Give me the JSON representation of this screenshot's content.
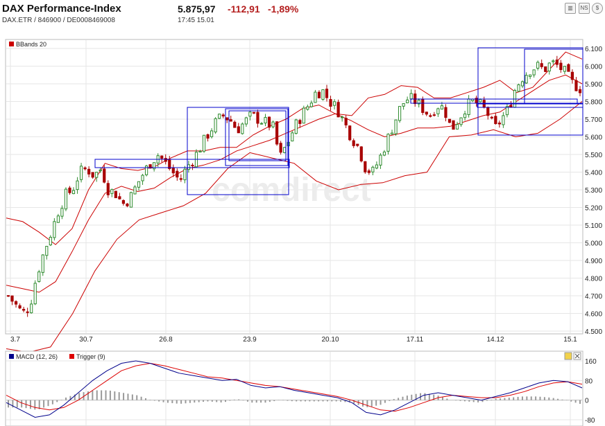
{
  "header": {
    "title": "DAX Performance-Index",
    "subtitle": "DAX.ETR  /  846900  /  DE0008469008",
    "price": "5.875,97",
    "change": "-112,91",
    "change_pct": "-1,89%",
    "time": "17:45   15.01",
    "toolbar": [
      {
        "name": "bar-chart-icon",
        "glyph": "▥"
      },
      {
        "name": "news-icon",
        "glyph": "NS"
      },
      {
        "name": "currency-icon",
        "glyph": "$"
      }
    ]
  },
  "watermark": "comdirect",
  "colors": {
    "up": "#2e8b2e",
    "down": "#a80000",
    "bands": "#cc0000",
    "macd": "#00008b",
    "trigger": "#dd0000",
    "histogram": "#999999",
    "boxes": "#0000cc"
  },
  "chart_data": [
    {
      "type": "candlestick",
      "legend": [
        {
          "name": "BBands 20",
          "color": "#cc0000"
        }
      ],
      "x_ticks": [
        "3.7",
        "30.7",
        "26.8",
        "23.9",
        "20.10",
        "17.11",
        "14.12",
        "15.1"
      ],
      "y_ticks": [
        "6.100",
        "6.000",
        "5.900",
        "5.800",
        "5.700",
        "5.600",
        "5.500",
        "5.400",
        "5.300",
        "5.200",
        "5.100",
        "5.000",
        "4.900",
        "4.800",
        "4.700",
        "4.600",
        "4.500"
      ],
      "ylim": [
        4500,
        6100
      ],
      "close_path": [
        4700,
        4650,
        4600,
        4640,
        4820,
        4950,
        5060,
        5180,
        5270,
        5300,
        5400,
        5420,
        5380,
        5420,
        5300,
        5280,
        5220,
        5250,
        5330,
        5400,
        5460,
        5500,
        5450,
        5400,
        5350,
        5430,
        5480,
        5550,
        5620,
        5680,
        5720,
        5700,
        5640,
        5680,
        5720,
        5700,
        5680,
        5660,
        5480,
        5560,
        5650,
        5720,
        5780,
        5850,
        5860,
        5800,
        5760,
        5680,
        5600,
        5540,
        5420,
        5400,
        5480,
        5580,
        5680,
        5780,
        5820,
        5800,
        5760,
        5720,
        5780,
        5760,
        5640,
        5700,
        5770,
        5800,
        5780,
        5740,
        5640,
        5700,
        5760,
        5880,
        5940,
        5980,
        6000,
        5980,
        6020,
        6000,
        5960,
        5900,
        5876
      ],
      "upper_band": [
        5140,
        5120,
        5060,
        4990,
        5080,
        5300,
        5450,
        5420,
        5410,
        5430,
        5480,
        5520,
        5520,
        5540,
        5540,
        5610,
        5660,
        5700,
        5760,
        5780,
        5730,
        5720,
        5820,
        5840,
        5890,
        5880,
        5820,
        5820,
        5850,
        5880,
        5920,
        5850,
        5880,
        5980,
        6080,
        6040
      ],
      "middle_band": [
        4760,
        4740,
        4720,
        4780,
        4950,
        5130,
        5280,
        5320,
        5290,
        5310,
        5370,
        5420,
        5440,
        5470,
        5520,
        5550,
        5580,
        5620,
        5660,
        5700,
        5730,
        5690,
        5640,
        5600,
        5620,
        5650,
        5650,
        5660,
        5690,
        5720,
        5740,
        5800,
        5860,
        5920,
        5950,
        5900
      ],
      "lower_band": [
        4400,
        4380,
        4410,
        4600,
        4840,
        5020,
        5130,
        5170,
        5210,
        5280,
        5420,
        5510,
        5480,
        5450,
        5350,
        5300,
        5330,
        5340,
        5380,
        5400,
        5600,
        5610,
        5640,
        5600,
        5620,
        5700,
        5800
      ]
    },
    {
      "type": "macd",
      "legend": [
        {
          "name": "MACD (12, 26)",
          "color": "#00008b"
        },
        {
          "name": "Trigger (9)",
          "color": "#dd0000"
        }
      ],
      "y_ticks": [
        "160",
        "80",
        "0",
        "-80"
      ],
      "ylim": [
        -80,
        160
      ],
      "macd": [
        -10,
        -40,
        -70,
        -60,
        -20,
        30,
        80,
        120,
        150,
        160,
        150,
        130,
        110,
        100,
        90,
        80,
        85,
        60,
        50,
        55,
        40,
        30,
        20,
        10,
        -10,
        -50,
        -60,
        -40,
        -10,
        20,
        30,
        20,
        10,
        0,
        15,
        30,
        50,
        70,
        80,
        75,
        50
      ],
      "trigger": [
        20,
        -10,
        -30,
        -40,
        -30,
        0,
        40,
        80,
        120,
        140,
        150,
        140,
        125,
        110,
        95,
        90,
        80,
        70,
        60,
        55,
        45,
        35,
        25,
        15,
        0,
        -20,
        -40,
        -45,
        -30,
        -10,
        10,
        20,
        15,
        10,
        10,
        20,
        35,
        55,
        70,
        75,
        65
      ],
      "histogram": [
        -30,
        -30,
        -40,
        -20,
        10,
        30,
        40,
        40,
        30,
        20,
        0,
        -10,
        -15,
        -10,
        -5,
        -10,
        5,
        -10,
        -10,
        0,
        -5,
        -5,
        -5,
        -5,
        -10,
        -30,
        -20,
        5,
        20,
        30,
        20,
        0,
        -5,
        -10,
        5,
        10,
        15,
        15,
        10,
        0,
        -15
      ]
    }
  ]
}
